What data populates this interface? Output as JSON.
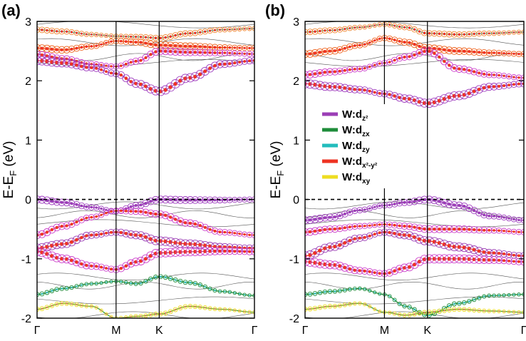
{
  "chart_data": [
    {
      "type": "line",
      "panel_label": "(a)",
      "ylabel": "E-E",
      "ylabel_sub": "F",
      "ylabel_unit": "(eV)",
      "ylim": [
        -2,
        3
      ],
      "yticks": [
        -2,
        -1,
        0,
        1,
        2,
        3
      ],
      "ytick_labels": [
        "-2",
        "-1",
        "0",
        "1",
        "2",
        "3"
      ],
      "kpath": [
        {
          "label": "Γ",
          "pos": 0
        },
        {
          "label": "M",
          "pos": 0.3635
        },
        {
          "label": "K",
          "pos": 0.5618
        },
        {
          "label": "Γ",
          "pos": 1
        }
      ],
      "fermi_level": 0,
      "series": [
        {
          "name": "band-c4",
          "values": [
            [
              0,
              2.86
            ],
            [
              0.12,
              2.83
            ],
            [
              0.25,
              2.78
            ],
            [
              0.3635,
              2.75
            ],
            [
              0.46,
              2.74
            ],
            [
              0.5618,
              2.72
            ],
            [
              0.7,
              2.8
            ],
            [
              0.85,
              2.86
            ],
            [
              1,
              2.88
            ]
          ]
        },
        {
          "name": "band-c3",
          "values": [
            [
              0,
              2.55
            ],
            [
              0.12,
              2.52
            ],
            [
              0.25,
              2.58
            ],
            [
              0.3635,
              2.67
            ],
            [
              0.46,
              2.65
            ],
            [
              0.5618,
              2.6
            ],
            [
              0.7,
              2.58
            ],
            [
              0.85,
              2.56
            ],
            [
              1,
              2.55
            ]
          ]
        },
        {
          "name": "band-c2",
          "values": [
            [
              0,
              2.44
            ],
            [
              0.12,
              2.37
            ],
            [
              0.25,
              2.28
            ],
            [
              0.3635,
              2.24
            ],
            [
              0.46,
              2.33
            ],
            [
              0.5618,
              2.5
            ],
            [
              0.7,
              2.48
            ],
            [
              0.85,
              2.47
            ],
            [
              1,
              2.45
            ]
          ]
        },
        {
          "name": "band-c1",
          "values": [
            [
              0,
              2.34
            ],
            [
              0.12,
              2.3
            ],
            [
              0.25,
              2.22
            ],
            [
              0.3635,
              2.12
            ],
            [
              0.46,
              1.95
            ],
            [
              0.5618,
              1.82
            ],
            [
              0.7,
              2.05
            ],
            [
              0.85,
              2.28
            ],
            [
              1,
              2.34
            ]
          ]
        },
        {
          "name": "band-v1",
          "values": [
            [
              0,
              0
            ],
            [
              0.12,
              -0.05
            ],
            [
              0.25,
              -0.13
            ],
            [
              0.3635,
              -0.2
            ],
            [
              0.46,
              -0.1
            ],
            [
              0.5618,
              0
            ],
            [
              0.7,
              -0.01
            ],
            [
              0.85,
              -0.01
            ],
            [
              1,
              0
            ]
          ]
        },
        {
          "name": "band-v2",
          "values": [
            [
              0,
              -0.6
            ],
            [
              0.12,
              -0.45
            ],
            [
              0.25,
              -0.3
            ],
            [
              0.3635,
              -0.19
            ],
            [
              0.46,
              -0.2
            ],
            [
              0.5618,
              -0.25
            ],
            [
              0.7,
              -0.4
            ],
            [
              0.85,
              -0.55
            ],
            [
              1,
              -0.6
            ]
          ]
        },
        {
          "name": "band-v3",
          "values": [
            [
              0,
              -0.82
            ],
            [
              0.12,
              -0.75
            ],
            [
              0.25,
              -0.6
            ],
            [
              0.3635,
              -0.55
            ],
            [
              0.46,
              -0.6
            ],
            [
              0.5618,
              -0.7
            ],
            [
              0.7,
              -0.75
            ],
            [
              0.85,
              -0.8
            ],
            [
              1,
              -0.82
            ]
          ]
        },
        {
          "name": "band-v4",
          "values": [
            [
              0,
              -0.88
            ],
            [
              0.12,
              -1
            ],
            [
              0.25,
              -1.12
            ],
            [
              0.3635,
              -1.18
            ],
            [
              0.46,
              -1.05
            ],
            [
              0.5618,
              -0.9
            ],
            [
              0.7,
              -0.88
            ],
            [
              0.85,
              -0.87
            ],
            [
              1,
              -0.88
            ]
          ]
        },
        {
          "name": "band-v5",
          "values": [
            [
              0,
              -1.6
            ],
            [
              0.12,
              -1.5
            ],
            [
              0.25,
              -1.42
            ],
            [
              0.3635,
              -1.38
            ],
            [
              0.46,
              -1.42
            ],
            [
              0.5618,
              -1.3
            ],
            [
              0.7,
              -1.4
            ],
            [
              0.85,
              -1.55
            ],
            [
              1,
              -1.62
            ]
          ]
        },
        {
          "name": "band-v6",
          "values": [
            [
              0,
              -1.85
            ],
            [
              0.12,
              -1.75
            ],
            [
              0.25,
              -1.8
            ],
            [
              0.3635,
              -2
            ],
            [
              0.46,
              -1.97
            ],
            [
              0.5618,
              -1.93
            ],
            [
              0.7,
              -1.8
            ],
            [
              0.85,
              -1.85
            ],
            [
              1,
              -1.9
            ]
          ]
        }
      ]
    },
    {
      "type": "line",
      "panel_label": "(b)",
      "ylabel": "E-E",
      "ylabel_sub": "F",
      "ylabel_unit": "(eV)",
      "ylim": [
        -2,
        3
      ],
      "yticks": [
        -2,
        -1,
        0,
        1,
        2,
        3
      ],
      "ytick_labels": [
        "-2",
        "-1",
        "0",
        "1",
        "2",
        "3"
      ],
      "kpath": [
        {
          "label": "Γ",
          "pos": 0
        },
        {
          "label": "M",
          "pos": 0.3628
        },
        {
          "label": "K",
          "pos": 0.5593
        },
        {
          "label": "Γ",
          "pos": 1
        }
      ],
      "fermi_level": 0,
      "legend": [
        {
          "label": "W:d",
          "sub": "z²",
          "color": "#9b3fb6"
        },
        {
          "label": "W:d",
          "sub": "zx",
          "color": "#1e8c3a"
        },
        {
          "label": "W:d",
          "sub": "zy",
          "color": "#22bcbc"
        },
        {
          "label": "W:d",
          "sub": "x²-y²",
          "color": "#ee3322"
        },
        {
          "label": "W:d",
          "sub": "xy",
          "color": "#eedd22"
        }
      ],
      "series": [
        {
          "name": "band-c4",
          "values": [
            [
              0,
              2.82
            ],
            [
              0.12,
              2.85
            ],
            [
              0.25,
              2.9
            ],
            [
              0.3628,
              2.95
            ],
            [
              0.46,
              2.9
            ],
            [
              0.5593,
              2.8
            ],
            [
              0.7,
              2.78
            ],
            [
              0.85,
              2.8
            ],
            [
              1,
              2.82
            ]
          ]
        },
        {
          "name": "band-c3",
          "values": [
            [
              0,
              2.45
            ],
            [
              0.12,
              2.5
            ],
            [
              0.25,
              2.6
            ],
            [
              0.3628,
              2.72
            ],
            [
              0.46,
              2.65
            ],
            [
              0.5593,
              2.55
            ],
            [
              0.7,
              2.5
            ],
            [
              0.85,
              2.47
            ],
            [
              1,
              2.45
            ]
          ]
        },
        {
          "name": "band-c2",
          "values": [
            [
              0,
              2.1
            ],
            [
              0.12,
              2.15
            ],
            [
              0.25,
              2.2
            ],
            [
              0.3628,
              2.3
            ],
            [
              0.46,
              2.4
            ],
            [
              0.5593,
              2.5
            ],
            [
              0.7,
              2.2
            ],
            [
              0.85,
              2.1
            ],
            [
              1,
              2.05
            ]
          ]
        },
        {
          "name": "band-c1",
          "values": [
            [
              0,
              1.95
            ],
            [
              0.12,
              1.9
            ],
            [
              0.25,
              1.85
            ],
            [
              0.3628,
              1.78
            ],
            [
              0.46,
              1.7
            ],
            [
              0.5593,
              1.62
            ],
            [
              0.7,
              1.75
            ],
            [
              0.85,
              1.9
            ],
            [
              1,
              1.95
            ]
          ]
        },
        {
          "name": "band-v1",
          "values": [
            [
              0,
              -0.35
            ],
            [
              0.12,
              -0.3
            ],
            [
              0.25,
              -0.18
            ],
            [
              0.3628,
              -0.1
            ],
            [
              0.46,
              -0.05
            ],
            [
              0.5593,
              0
            ],
            [
              0.7,
              -0.1
            ],
            [
              0.85,
              -0.28
            ],
            [
              1,
              -0.35
            ]
          ]
        },
        {
          "name": "band-v2",
          "values": [
            [
              0,
              -0.55
            ],
            [
              0.12,
              -0.5
            ],
            [
              0.25,
              -0.45
            ],
            [
              0.3628,
              -0.42
            ],
            [
              0.46,
              -0.45
            ],
            [
              0.5593,
              -0.5
            ],
            [
              0.7,
              -0.5
            ],
            [
              0.85,
              -0.52
            ],
            [
              1,
              -0.55
            ]
          ]
        },
        {
          "name": "band-v3",
          "values": [
            [
              0,
              -0.95
            ],
            [
              0.12,
              -0.8
            ],
            [
              0.25,
              -0.65
            ],
            [
              0.3628,
              -0.55
            ],
            [
              0.46,
              -0.6
            ],
            [
              0.5593,
              -0.7
            ],
            [
              0.7,
              -0.8
            ],
            [
              0.85,
              -0.9
            ],
            [
              1,
              -0.95
            ]
          ]
        },
        {
          "name": "band-v4",
          "values": [
            [
              0,
              -1.05
            ],
            [
              0.12,
              -1.1
            ],
            [
              0.25,
              -1.2
            ],
            [
              0.3628,
              -1.25
            ],
            [
              0.46,
              -1.15
            ],
            [
              0.5593,
              -1
            ],
            [
              0.7,
              -1
            ],
            [
              0.85,
              -1.02
            ],
            [
              1,
              -1.05
            ]
          ]
        },
        {
          "name": "band-v5",
          "values": [
            [
              0,
              -1.6
            ],
            [
              0.12,
              -1.55
            ],
            [
              0.25,
              -1.5
            ],
            [
              0.3628,
              -1.6
            ],
            [
              0.46,
              -1.8
            ],
            [
              0.5593,
              -1.95
            ],
            [
              0.7,
              -1.75
            ],
            [
              0.85,
              -1.62
            ],
            [
              1,
              -1.6
            ]
          ]
        },
        {
          "name": "band-v6",
          "values": [
            [
              0,
              -1.85
            ],
            [
              0.12,
              -1.8
            ],
            [
              0.25,
              -1.75
            ],
            [
              0.3628,
              -1.9
            ],
            [
              0.46,
              -1.95
            ],
            [
              0.5593,
              -1.9
            ],
            [
              0.7,
              -1.85
            ],
            [
              0.85,
              -1.88
            ],
            [
              1,
              -1.9
            ]
          ]
        }
      ]
    }
  ]
}
